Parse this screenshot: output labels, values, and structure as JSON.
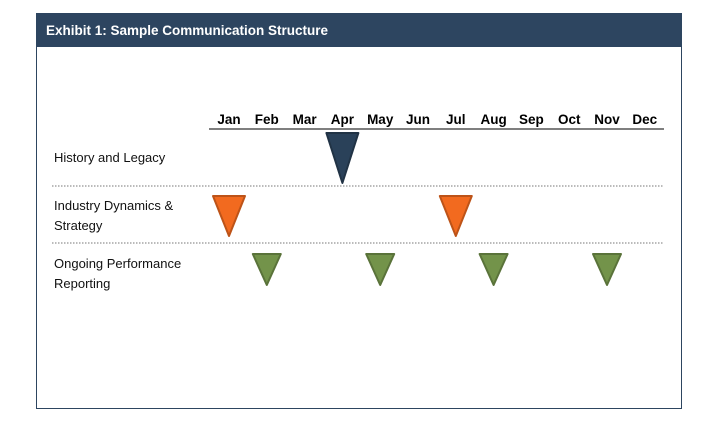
{
  "title": "Exhibit 1: Sample Communication Structure",
  "months": [
    "Jan",
    "Feb",
    "Mar",
    "Apr",
    "May",
    "Jun",
    "Jul",
    "Aug",
    "Sep",
    "Oct",
    "Nov",
    "Dec"
  ],
  "rows": [
    {
      "label_lines": [
        "History and Legacy"
      ],
      "color": "#2a4159",
      "markers": [
        "Apr"
      ]
    },
    {
      "label_lines": [
        "Industry Dynamics &",
        "Strategy"
      ],
      "color": "#f26a1f",
      "markers": [
        "Jan",
        "Jul"
      ]
    },
    {
      "label_lines": [
        "Ongoing Performance",
        "Reporting"
      ],
      "color": "#73934a",
      "markers": [
        "Feb",
        "May",
        "Aug",
        "Nov"
      ]
    }
  ]
}
